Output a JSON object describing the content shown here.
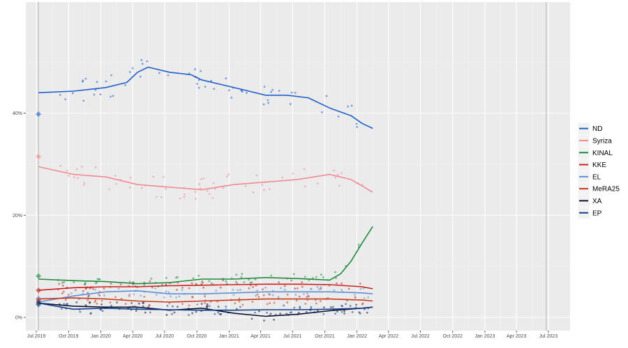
{
  "chart_data": {
    "type": "scatter",
    "title": "",
    "xlabel": "",
    "ylabel": "",
    "x_ticks": [
      "Jul 2019",
      "Oct 2019",
      "Jan 2020",
      "Apr 2020",
      "Jul 2020",
      "Oct 2020",
      "Jan 2021",
      "Apr 2021",
      "Jul 2021",
      "Oct 2021",
      "Jan 2022",
      "Apr 2022",
      "Jul 2022",
      "Oct 2022",
      "Jan 2023",
      "Apr 2023",
      "Jul 2023"
    ],
    "y_ticks": [
      "0%",
      "20%",
      "40%"
    ],
    "ylim": [
      0,
      55
    ],
    "xlim": [
      "2019-06-01",
      "2023-09-01"
    ],
    "grid": true,
    "legend_position": "right",
    "election_markers": [
      "2019-07-07",
      "2023-06-25"
    ],
    "series": [
      {
        "name": "ND",
        "color": "#1f5fc9",
        "x": [
          "2019-07-07",
          "2019-10",
          "2020-01",
          "2020-03",
          "2020-04",
          "2020-05",
          "2020-07",
          "2020-09",
          "2020-10",
          "2020-12",
          "2021-02",
          "2021-04",
          "2021-06",
          "2021-08",
          "2021-10",
          "2021-12",
          "2022-01",
          "2022-02"
        ],
        "y": [
          44,
          44.3,
          45,
          46,
          48,
          49,
          48,
          47.5,
          46.5,
          45.5,
          44.5,
          43.5,
          43.5,
          43,
          41,
          39.5,
          38,
          37
        ],
        "election_result": 39.8
      },
      {
        "name": "Syriza",
        "color": "#f08a93",
        "x": [
          "2019-07-07",
          "2019-10",
          "2020-01",
          "2020-04",
          "2020-07",
          "2020-10",
          "2021-01",
          "2021-04",
          "2021-07",
          "2021-10",
          "2021-12",
          "2022-02"
        ],
        "y": [
          29.5,
          28,
          27.5,
          26,
          25.5,
          25,
          26,
          26.5,
          27,
          28,
          27,
          24.5
        ],
        "election_result": 31.5
      },
      {
        "name": "KINAL",
        "color": "#1c8a3c",
        "x": [
          "2019-07-07",
          "2019-10",
          "2020-01",
          "2020-04",
          "2020-07",
          "2020-10",
          "2021-01",
          "2021-04",
          "2021-07",
          "2021-10",
          "2021-11",
          "2021-12",
          "2022-01",
          "2022-02"
        ],
        "y": [
          7.5,
          7.2,
          7,
          6.6,
          6.8,
          7.5,
          7.5,
          7.8,
          7.6,
          7.3,
          8.5,
          11,
          14.5,
          17.8
        ],
        "election_result": 8.1
      },
      {
        "name": "KKE",
        "color": "#cc1f1f",
        "x": [
          "2019-07-07",
          "2019-10",
          "2020-01",
          "2020-04",
          "2020-07",
          "2020-10",
          "2021-01",
          "2021-04",
          "2021-07",
          "2021-10",
          "2022-01",
          "2022-02"
        ],
        "y": [
          5.3,
          5.8,
          6,
          6,
          6.2,
          6.3,
          6.4,
          6.5,
          6.5,
          6.4,
          6,
          5.6
        ],
        "election_result": 5.3
      },
      {
        "name": "EL",
        "color": "#5b8fd6",
        "x": [
          "2019-07-07",
          "2019-10",
          "2020-01",
          "2020-04",
          "2020-07",
          "2020-10",
          "2021-01",
          "2021-04",
          "2021-07",
          "2021-10",
          "2022-01",
          "2022-02"
        ],
        "y": [
          3,
          4.2,
          5,
          5.2,
          4.6,
          4.6,
          4.8,
          5,
          5,
          5,
          4.8,
          4.6
        ],
        "election_result": 3.7
      },
      {
        "name": "MeRA25",
        "color": "#c7361a",
        "x": [
          "2019-07-07",
          "2019-10",
          "2020-01",
          "2020-04",
          "2020-07",
          "2020-10",
          "2021-01",
          "2021-04",
          "2021-07",
          "2021-10",
          "2022-01",
          "2022-02"
        ],
        "y": [
          3.6,
          3.8,
          3.6,
          3.2,
          3,
          3.2,
          3.4,
          3.6,
          3.6,
          3.6,
          3.4,
          3.2
        ],
        "election_result": 3.4
      },
      {
        "name": "XA",
        "color": "#0b1035",
        "x": [
          "2019-07-07",
          "2019-10",
          "2020-01",
          "2020-04",
          "2020-07",
          "2020-10",
          "2021-01",
          "2021-04",
          "2021-07",
          "2021-10",
          "2022-01",
          "2022-02"
        ],
        "y": [
          2.8,
          2.2,
          2,
          2,
          1.4,
          1.8,
          0.8,
          0.2,
          0.6,
          1.3,
          1.8,
          2
        ],
        "election_result": 2.9
      },
      {
        "name": "EP",
        "color": "#0f3d87",
        "x": [
          "2019-07-07",
          "2019-10",
          "2020-01",
          "2020-04",
          "2020-07",
          "2020-10",
          "2021-01",
          "2021-04",
          "2021-07",
          "2021-10",
          "2022-01",
          "2022-02"
        ],
        "y": [
          2.8,
          1.6,
          1.8,
          1.6,
          1.5,
          1.4,
          1.4,
          1.5,
          1.5,
          1.6,
          1.8,
          2
        ],
        "election_result": 2.5
      }
    ]
  }
}
